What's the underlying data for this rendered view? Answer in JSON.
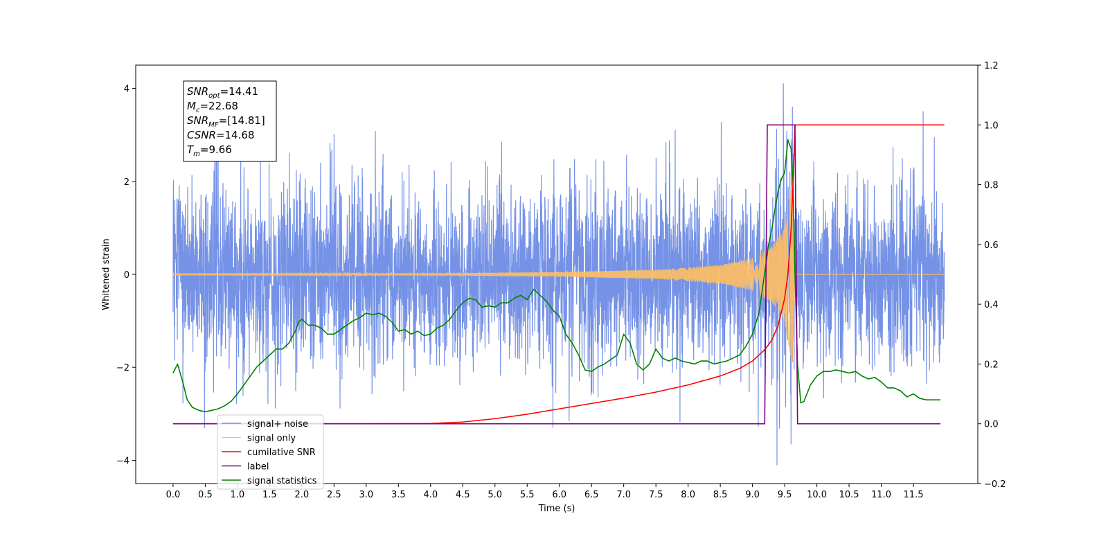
{
  "chart_data": {
    "type": "line",
    "title": "",
    "xlabel": "Time (s)",
    "ylabel": "Whitened strain",
    "xlim": [
      -0.58,
      12.5
    ],
    "ylim": [
      -4.5,
      4.5
    ],
    "y2lim": [
      -0.2,
      1.2
    ],
    "x_ticks": [
      0.0,
      0.5,
      1.0,
      1.5,
      2.0,
      2.5,
      3.0,
      3.5,
      4.0,
      4.5,
      5.0,
      5.5,
      6.0,
      6.5,
      7.0,
      7.5,
      8.0,
      8.5,
      9.0,
      9.5,
      10.0,
      10.5,
      11.0,
      11.5
    ],
    "x_tick_labels": [
      "0.0",
      "0.5",
      "1.0",
      "1.5",
      "2.0",
      "2.5",
      "3.0",
      "3.5",
      "4.0",
      "4.5",
      "5.0",
      "5.5",
      "6.0",
      "6.5",
      "7.0",
      "7.5",
      "8.0",
      "8.5",
      "9.0",
      "9.5",
      "10.0",
      "10.5",
      "11.0",
      "11.5"
    ],
    "y_ticks": [
      -4,
      -2,
      0,
      2,
      4
    ],
    "y_tick_labels": [
      "−4",
      "−2",
      "0",
      "2",
      "4"
    ],
    "y2_ticks": [
      -0.2,
      0.0,
      0.2,
      0.4,
      0.6,
      0.8,
      1.0,
      1.2
    ],
    "y2_tick_labels": [
      "−0.2",
      "0.0",
      "0.2",
      "0.4",
      "0.6",
      "0.8",
      "1.0",
      "1.2"
    ],
    "grid": false,
    "legend_position": "bottom-left",
    "annotation": {
      "lines": [
        {
          "main": "SNR",
          "sub": "opt",
          "rest": "=14.41"
        },
        {
          "main": "M",
          "sub": "c",
          "rest": "=22.68"
        },
        {
          "main": "SNR",
          "sub": "MF",
          "rest": "=[14.81]"
        },
        {
          "main": "CSNR",
          "sub": "",
          "rest": "=14.68"
        },
        {
          "main": "T",
          "sub": "m",
          "rest": "=9.66"
        }
      ]
    },
    "series": [
      {
        "name": "signal+ noise",
        "color": "#7592e6",
        "axis": "left",
        "noise_model": "gaussian, sd ≈ 0.95, x from 0.0 to 11.98 s",
        "notable_peaks": [
          [
            9.48,
            4.1
          ],
          [
            9.38,
            -4.1
          ],
          [
            9.62,
            3.6
          ],
          [
            9.6,
            -3.65
          ],
          [
            11.65,
            3.5
          ],
          [
            7.8,
            3.1
          ]
        ]
      },
      {
        "name": "signal only",
        "color": "#ffbf60",
        "axis": "left",
        "description": "chirp, amplitude rising sharply near merger at 9.66 s",
        "envelope": [
          [
            0.0,
            0.01
          ],
          [
            4.0,
            0.02
          ],
          [
            6.0,
            0.05
          ],
          [
            7.5,
            0.1
          ],
          [
            8.5,
            0.2
          ],
          [
            9.0,
            0.35
          ],
          [
            9.3,
            0.6
          ],
          [
            9.5,
            1.0
          ],
          [
            9.6,
            1.8
          ],
          [
            9.63,
            2.2
          ],
          [
            9.66,
            0.0
          ],
          [
            11.98,
            0.0
          ]
        ]
      },
      {
        "name": "cumilative SNR",
        "color": "#ff0000",
        "axis": "right",
        "x": [
          0.0,
          3.0,
          4.0,
          4.5,
          5.0,
          5.5,
          6.0,
          6.5,
          7.0,
          7.5,
          8.0,
          8.5,
          8.8,
          9.0,
          9.2,
          9.3,
          9.4,
          9.5,
          9.55,
          9.6,
          9.64,
          9.66,
          10.0,
          11.98
        ],
        "y": [
          0.0,
          0.0,
          0.001,
          0.006,
          0.017,
          0.032,
          0.05,
          0.068,
          0.086,
          0.106,
          0.13,
          0.16,
          0.185,
          0.21,
          0.25,
          0.28,
          0.33,
          0.42,
          0.5,
          0.65,
          0.86,
          1.0,
          1.0,
          1.0
        ]
      },
      {
        "name": "label",
        "color": "#800080",
        "axis": "right",
        "x": [
          0.0,
          9.19,
          9.23,
          9.6,
          9.66,
          9.7,
          11.92
        ],
        "y": [
          0.0,
          0.0,
          1.0,
          1.0,
          1.0,
          0.0,
          0.0
        ]
      },
      {
        "name": "signal statistics",
        "color": "#008000",
        "axis": "right",
        "x": [
          0.0,
          0.07,
          0.15,
          0.22,
          0.3,
          0.4,
          0.5,
          0.6,
          0.7,
          0.8,
          0.9,
          1.0,
          1.1,
          1.2,
          1.3,
          1.4,
          1.5,
          1.6,
          1.7,
          1.8,
          1.9,
          1.95,
          2.0,
          2.1,
          2.2,
          2.3,
          2.4,
          2.5,
          2.6,
          2.7,
          2.8,
          2.9,
          3.0,
          3.1,
          3.2,
          3.3,
          3.4,
          3.5,
          3.6,
          3.7,
          3.8,
          3.9,
          4.0,
          4.1,
          4.2,
          4.3,
          4.4,
          4.5,
          4.6,
          4.7,
          4.8,
          4.9,
          5.0,
          5.1,
          5.2,
          5.3,
          5.4,
          5.5,
          5.6,
          5.7,
          5.8,
          5.9,
          6.0,
          6.1,
          6.2,
          6.3,
          6.4,
          6.5,
          6.6,
          6.7,
          6.8,
          6.9,
          7.0,
          7.1,
          7.2,
          7.3,
          7.4,
          7.5,
          7.6,
          7.7,
          7.8,
          7.9,
          8.0,
          8.1,
          8.2,
          8.3,
          8.4,
          8.5,
          8.6,
          8.7,
          8.8,
          8.9,
          9.0,
          9.1,
          9.2,
          9.25,
          9.3,
          9.35,
          9.4,
          9.45,
          9.5,
          9.55,
          9.6,
          9.63,
          9.66,
          9.7,
          9.75,
          9.8,
          9.9,
          10.0,
          10.1,
          10.2,
          10.3,
          10.4,
          10.5,
          10.6,
          10.7,
          10.8,
          10.9,
          11.0,
          11.1,
          11.2,
          11.3,
          11.4,
          11.5,
          11.6,
          11.7,
          11.8,
          11.92
        ],
        "y": [
          0.17,
          0.2,
          0.14,
          0.08,
          0.055,
          0.045,
          0.04,
          0.045,
          0.05,
          0.06,
          0.075,
          0.1,
          0.13,
          0.16,
          0.19,
          0.21,
          0.23,
          0.25,
          0.25,
          0.27,
          0.31,
          0.34,
          0.35,
          0.33,
          0.33,
          0.32,
          0.3,
          0.3,
          0.315,
          0.33,
          0.345,
          0.355,
          0.37,
          0.365,
          0.37,
          0.36,
          0.34,
          0.31,
          0.315,
          0.3,
          0.31,
          0.295,
          0.3,
          0.32,
          0.33,
          0.35,
          0.38,
          0.405,
          0.42,
          0.415,
          0.39,
          0.395,
          0.39,
          0.405,
          0.405,
          0.42,
          0.43,
          0.415,
          0.45,
          0.43,
          0.41,
          0.38,
          0.36,
          0.3,
          0.27,
          0.23,
          0.18,
          0.175,
          0.19,
          0.2,
          0.215,
          0.23,
          0.3,
          0.27,
          0.2,
          0.18,
          0.2,
          0.25,
          0.22,
          0.21,
          0.22,
          0.21,
          0.205,
          0.2,
          0.21,
          0.21,
          0.2,
          0.205,
          0.21,
          0.22,
          0.23,
          0.26,
          0.3,
          0.37,
          0.52,
          0.6,
          0.65,
          0.72,
          0.78,
          0.82,
          0.84,
          0.95,
          0.92,
          0.8,
          0.5,
          0.2,
          0.07,
          0.075,
          0.13,
          0.16,
          0.175,
          0.175,
          0.18,
          0.175,
          0.17,
          0.175,
          0.16,
          0.15,
          0.155,
          0.14,
          0.12,
          0.12,
          0.11,
          0.09,
          0.1,
          0.085,
          0.08,
          0.08,
          0.08
        ]
      }
    ]
  }
}
